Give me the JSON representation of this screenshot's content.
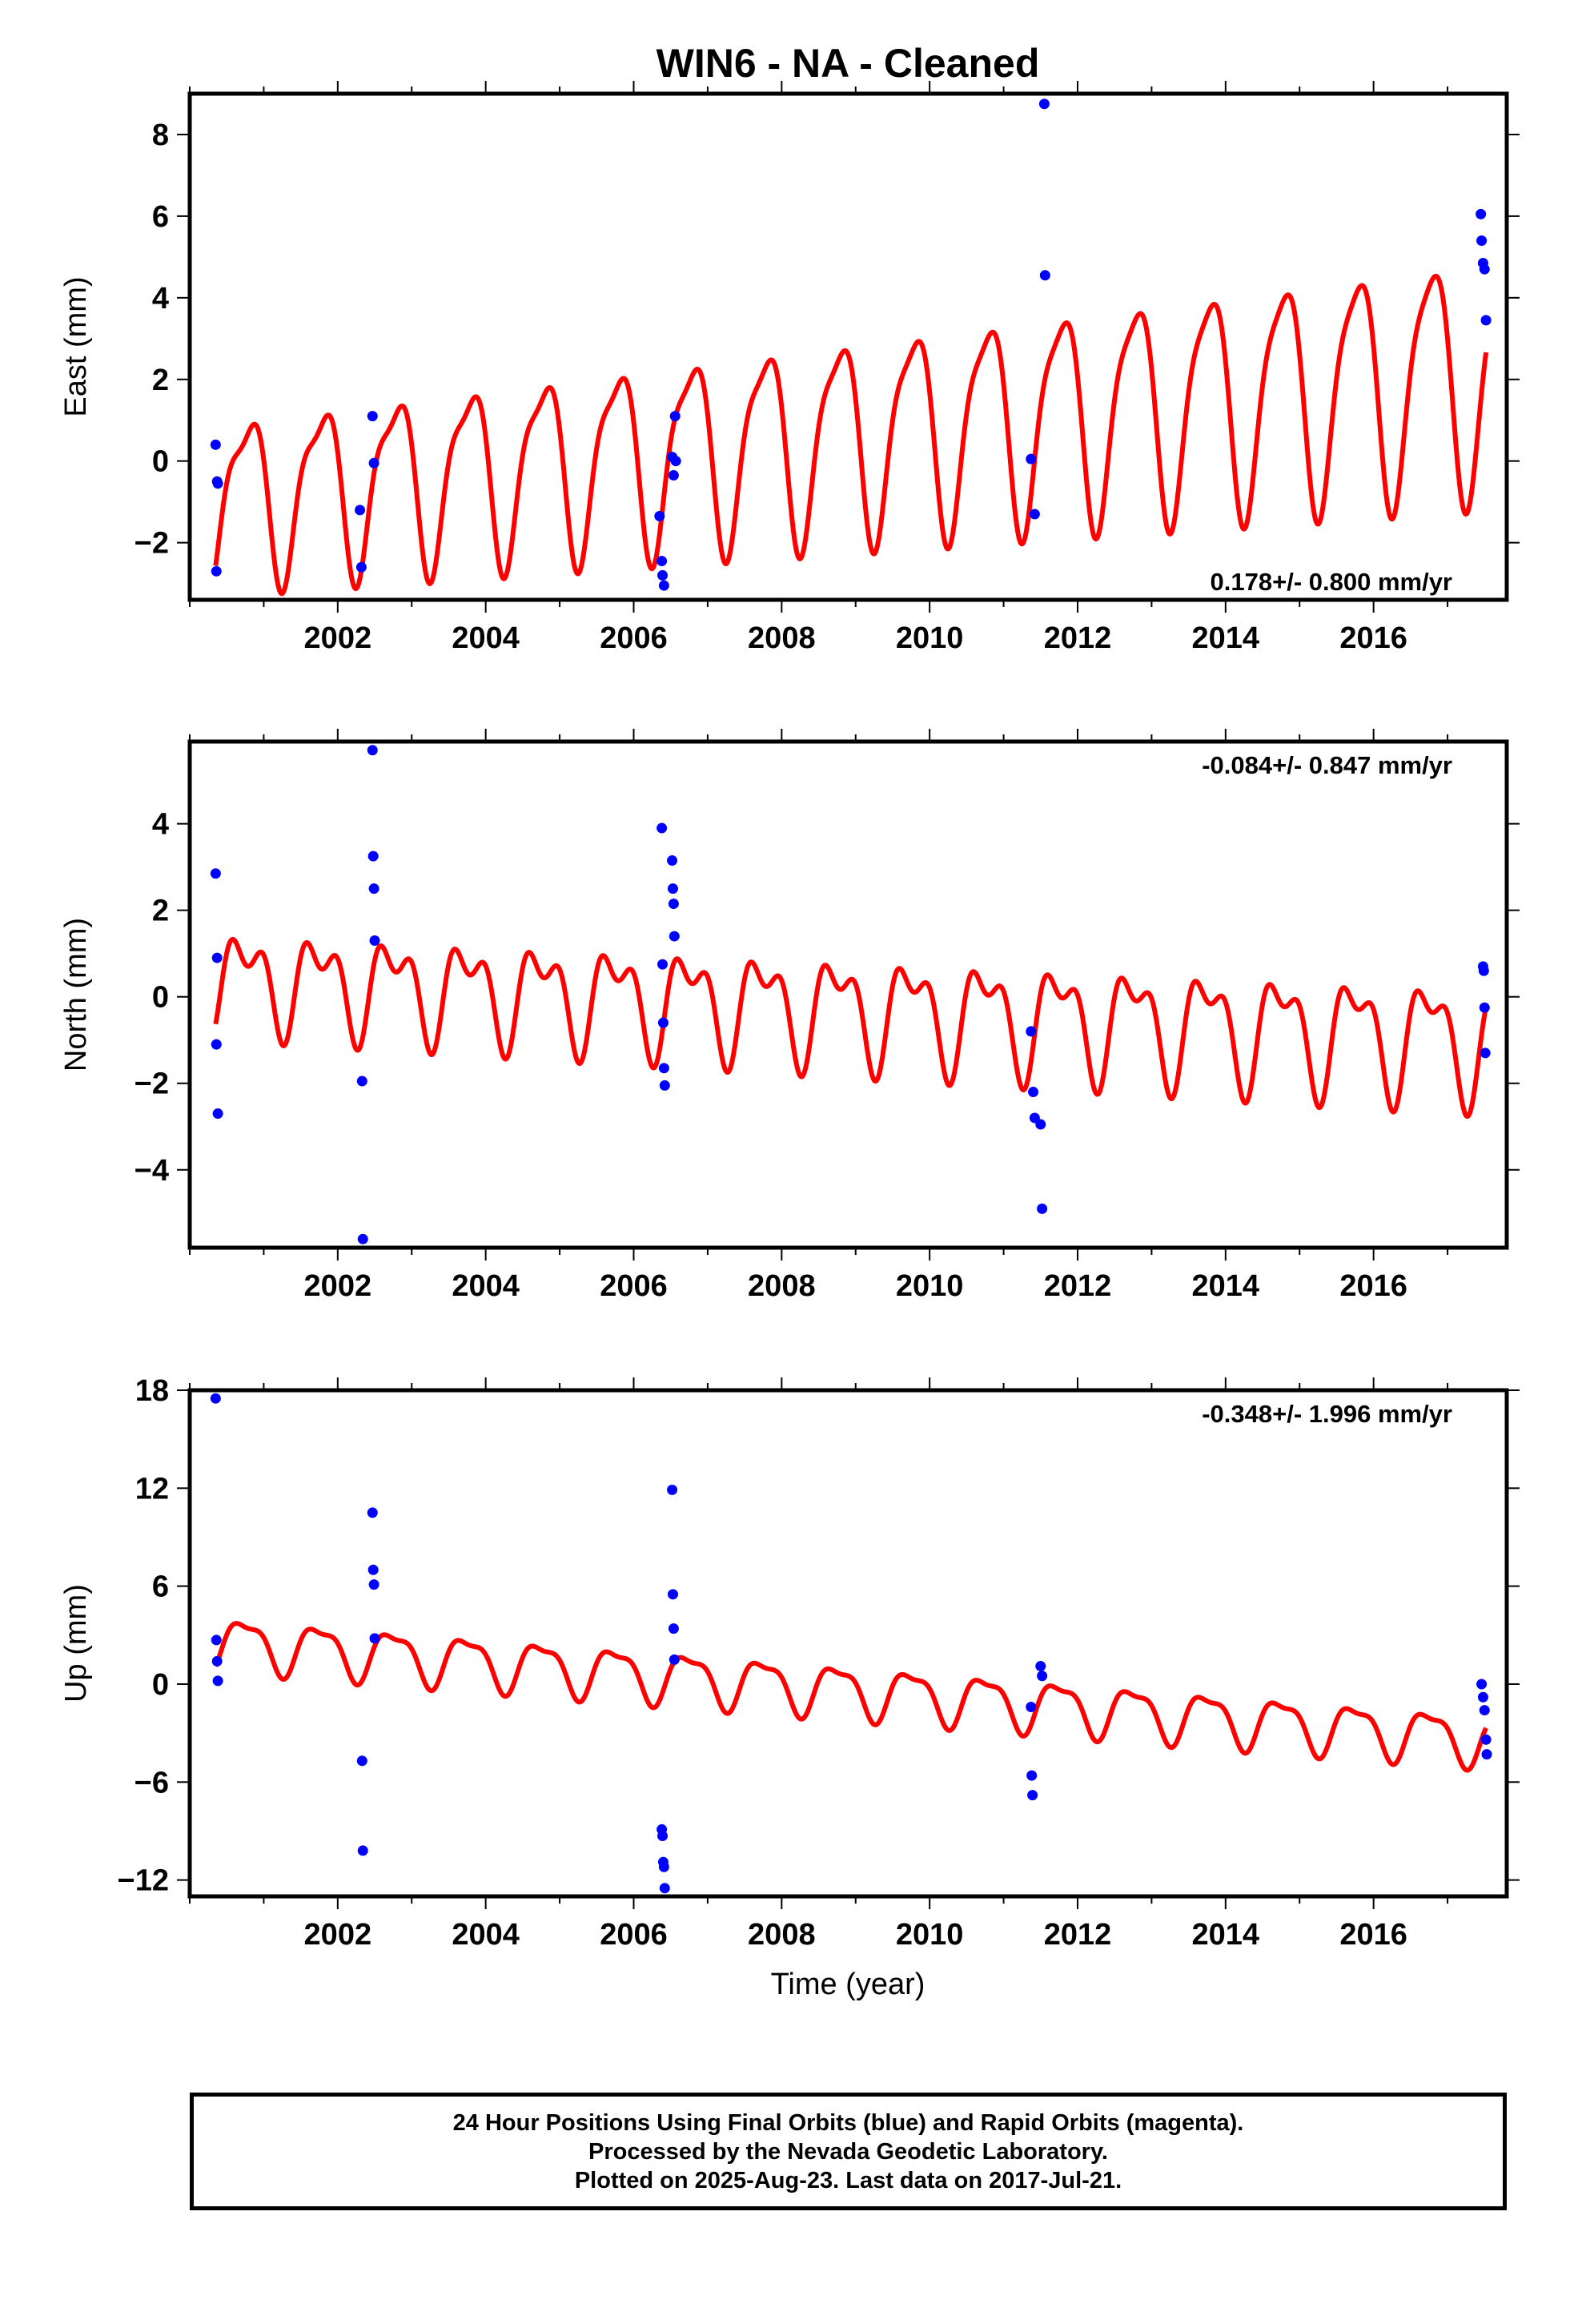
{
  "title": "WIN6  - NA - Cleaned",
  "xlabel": "Time (year)",
  "colors": {
    "model": "#ff0000",
    "final_orbits": "#0000ff",
    "rapid_orbits": "#ff00ff",
    "frame": "#000000"
  },
  "footer": [
    "24 Hour Positions Using Final Orbits (blue) and Rapid Orbits (magenta).",
    "Processed by the Nevada Geodetic Laboratory.",
    "Plotted on 2025-Aug-23. Last data on 2017-Jul-21."
  ],
  "chart_data": [
    {
      "type": "scatter",
      "ylabel": "East (mm)",
      "rate": "0.178+/- 0.800 mm/yr",
      "rate_position": "bottom-right",
      "xlim": [
        2000.0,
        2017.8
      ],
      "ylim": [
        -3.4,
        9.0
      ],
      "xticks": [
        2002,
        2004,
        2006,
        2008,
        2010,
        2012,
        2014,
        2016
      ],
      "yticks": [
        -2,
        0,
        2,
        4,
        6,
        8
      ],
      "grid": false,
      "points": [
        [
          2000.35,
          0.4
        ],
        [
          2000.37,
          -0.5
        ],
        [
          2000.38,
          -0.55
        ],
        [
          2000.36,
          -2.7
        ],
        [
          2002.3,
          -1.2
        ],
        [
          2002.32,
          -2.6
        ],
        [
          2002.47,
          1.1
        ],
        [
          2002.49,
          -0.05
        ],
        [
          2006.35,
          -1.35
        ],
        [
          2006.38,
          -2.45
        ],
        [
          2006.39,
          -2.8
        ],
        [
          2006.41,
          -3.05
        ],
        [
          2006.52,
          0.1
        ],
        [
          2006.54,
          -0.35
        ],
        [
          2006.56,
          1.1
        ],
        [
          2006.57,
          0.0
        ],
        [
          2011.37,
          0.05
        ],
        [
          2011.42,
          -1.3
        ],
        [
          2011.55,
          8.75
        ],
        [
          2011.56,
          4.55
        ],
        [
          2017.45,
          6.05
        ],
        [
          2017.46,
          5.4
        ],
        [
          2017.48,
          4.85
        ],
        [
          2017.5,
          4.7
        ],
        [
          2017.52,
          3.45
        ]
      ],
      "model": {
        "start": 2000.35,
        "end": 2017.52,
        "offset": -0.9,
        "rate": 0.178,
        "ref_year": 2000.35,
        "annual": [
          1.9,
          0.48
        ],
        "semiannual": [
          0.6,
          0.15
        ],
        "amp_growth": 0.03
      }
    },
    {
      "type": "scatter",
      "ylabel": "North (mm)",
      "rate": "-0.084+/- 0.847 mm/yr",
      "rate_position": "top-right",
      "xlim": [
        2000.0,
        2017.8
      ],
      "ylim": [
        -5.8,
        5.9
      ],
      "xticks": [
        2002,
        2004,
        2006,
        2008,
        2010,
        2012,
        2014,
        2016
      ],
      "yticks": [
        -4,
        -2,
        0,
        2,
        4
      ],
      "grid": false,
      "points": [
        [
          2000.35,
          2.85
        ],
        [
          2000.37,
          0.9
        ],
        [
          2000.36,
          -1.1
        ],
        [
          2000.38,
          -2.7
        ],
        [
          2002.33,
          -1.95
        ],
        [
          2002.34,
          -5.6
        ],
        [
          2002.47,
          5.7
        ],
        [
          2002.48,
          3.25
        ],
        [
          2002.49,
          2.5
        ],
        [
          2002.5,
          1.3
        ],
        [
          2006.38,
          3.9
        ],
        [
          2006.39,
          0.75
        ],
        [
          2006.4,
          -0.6
        ],
        [
          2006.41,
          -1.65
        ],
        [
          2006.42,
          -2.05
        ],
        [
          2006.52,
          3.15
        ],
        [
          2006.53,
          2.5
        ],
        [
          2006.54,
          2.15
        ],
        [
          2006.55,
          1.4
        ],
        [
          2011.37,
          -0.8
        ],
        [
          2011.4,
          -2.2
        ],
        [
          2011.42,
          -2.8
        ],
        [
          2011.5,
          -2.95
        ],
        [
          2011.52,
          -4.9
        ],
        [
          2017.48,
          0.7
        ],
        [
          2017.49,
          0.6
        ],
        [
          2017.5,
          -0.25
        ],
        [
          2017.51,
          -1.3
        ]
      ],
      "model": {
        "start": 2000.35,
        "end": 2017.52,
        "offset": 0.45,
        "rate": -0.084,
        "ref_year": 2000.35,
        "annual": [
          0.9,
          0.5
        ],
        "semiannual": [
          0.6,
          0.1
        ],
        "amp_growth": 0.02
      }
    },
    {
      "type": "scatter",
      "ylabel": "Up (mm)",
      "rate": "-0.348+/- 1.996 mm/yr",
      "rate_position": "top-right",
      "xlim": [
        2000.0,
        2017.8
      ],
      "ylim": [
        -13.0,
        18.0
      ],
      "xticks": [
        2002,
        2004,
        2006,
        2008,
        2010,
        2012,
        2014,
        2016
      ],
      "yticks": [
        -12,
        -6,
        0,
        6,
        12,
        18
      ],
      "grid": false,
      "points": [
        [
          2000.35,
          17.5
        ],
        [
          2000.36,
          2.7
        ],
        [
          2000.37,
          1.4
        ],
        [
          2000.38,
          0.2
        ],
        [
          2002.33,
          -4.7
        ],
        [
          2002.34,
          -10.2
        ],
        [
          2002.47,
          10.5
        ],
        [
          2002.48,
          7.0
        ],
        [
          2002.49,
          6.1
        ],
        [
          2002.5,
          2.8
        ],
        [
          2006.38,
          -8.9
        ],
        [
          2006.39,
          -9.3
        ],
        [
          2006.4,
          -10.9
        ],
        [
          2006.41,
          -11.2
        ],
        [
          2006.42,
          -12.5
        ],
        [
          2006.52,
          11.9
        ],
        [
          2006.53,
          5.5
        ],
        [
          2006.54,
          3.4
        ],
        [
          2006.55,
          1.5
        ],
        [
          2011.37,
          -1.4
        ],
        [
          2011.38,
          -5.6
        ],
        [
          2011.39,
          -6.8
        ],
        [
          2011.5,
          1.1
        ],
        [
          2011.52,
          0.5
        ],
        [
          2017.46,
          0.0
        ],
        [
          2017.48,
          -0.8
        ],
        [
          2017.5,
          -1.6
        ],
        [
          2017.52,
          -3.4
        ],
        [
          2017.53,
          -4.3
        ]
      ],
      "model": {
        "start": 2000.35,
        "end": 2017.52,
        "offset": 2.6,
        "rate": -0.348,
        "ref_year": 2000.35,
        "annual": [
          1.5,
          0.5
        ],
        "semiannual": [
          0.5,
          0.1
        ],
        "amp_growth": 0.0
      }
    }
  ]
}
